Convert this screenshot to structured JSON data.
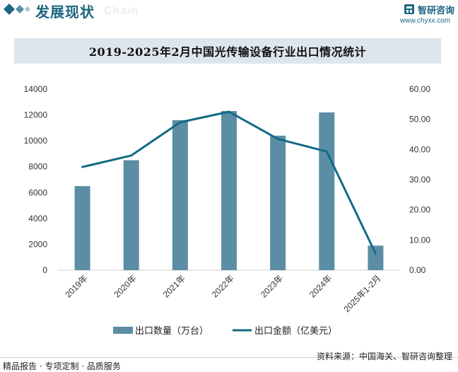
{
  "header": {
    "title": "发展现状",
    "subtitle": "Chain",
    "brand_name": "智研咨询",
    "brand_url": "www.chyxx.com"
  },
  "colors": {
    "bar": "#5b8ea4",
    "line": "#136a85",
    "accent": "#1c6680",
    "title_bg": "#dde6ec"
  },
  "chart_data": {
    "type": "bar+line",
    "title": "2019-2025年2月中国光传输设备行业出口情况统计",
    "categories": [
      "2019年",
      "2020年",
      "2021年",
      "2022年",
      "2023年",
      "2024年",
      "2025年1-2月"
    ],
    "series": [
      {
        "name": "出口数量（万台）",
        "type": "bar",
        "axis": "left",
        "values": [
          6500,
          8500,
          11600,
          12300,
          10400,
          12200,
          1900
        ]
      },
      {
        "name": "出口金额（亿美元）",
        "type": "line",
        "axis": "right",
        "values": [
          34.2,
          38.0,
          49.0,
          52.5,
          43.5,
          39.3,
          5.5
        ]
      }
    ],
    "y_left": {
      "min": 0,
      "max": 14000,
      "step": 2000,
      "ticks": [
        "0",
        "2000",
        "4000",
        "6000",
        "8000",
        "10000",
        "12000",
        "14000"
      ]
    },
    "y_right": {
      "min": 0,
      "max": 60,
      "step": 10,
      "ticks": [
        "0.00",
        "10.00",
        "20.00",
        "30.00",
        "40.00",
        "50.00",
        "60.00"
      ]
    },
    "legend_position": "bottom",
    "grid": false
  },
  "footer": {
    "left": "精品报告 · 专项定制 · 品质服务",
    "right": "资料来源：中国海关、智研咨询整理"
  }
}
